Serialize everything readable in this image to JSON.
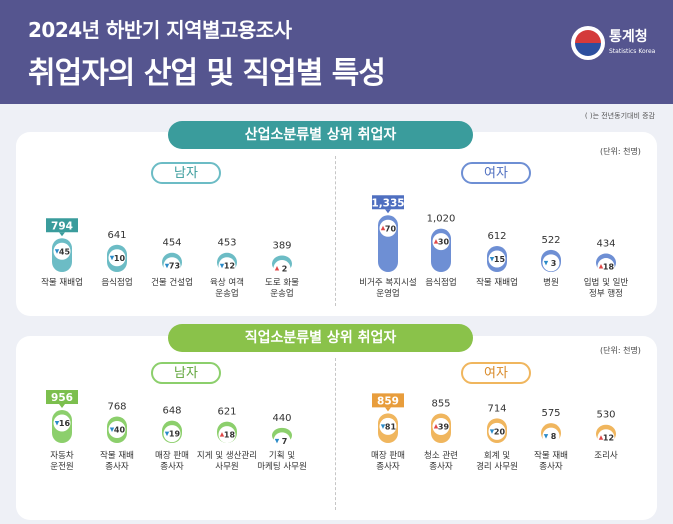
{
  "header": {
    "title_line1": "2024년 하반기 지역별고용조사",
    "title_line2": "취업자의 산업 및 직업별 특성",
    "logo_name": "통계청",
    "logo_sub": "Statistics Korea"
  },
  "note": "(  )는 전년동기대비 증감",
  "colors": {
    "teal": "#6cbcc5",
    "teal_dark": "#3a9c9c",
    "blue": "#6e8fd4",
    "blue_dark": "#4f6fc0",
    "green": "#8ccf6c",
    "green_dark": "#7cbf4e",
    "orange": "#f0b65e",
    "orange_dark": "#e89d3c",
    "increase": "#e04848",
    "decrease": "#2a8ac8"
  },
  "chart_data": [
    {
      "type": "bar",
      "title": "산업소분류별 상위 취업자",
      "unit": "(단위: 천명)",
      "groups": [
        {
          "name": "남자",
          "categories": [
            "작물 재배업",
            "음식점업",
            "건물 건설업",
            "육상 여객\n운송업",
            "도로 화물\n운송업"
          ],
          "values": [
            794,
            641,
            454,
            453,
            389
          ],
          "changes": [
            "45",
            "10",
            "73",
            "12",
            "2"
          ],
          "change_dir": [
            "down",
            "down",
            "down",
            "down",
            "up"
          ],
          "highlight": [
            true,
            false,
            false,
            false,
            false
          ]
        },
        {
          "name": "여자",
          "categories": [
            "비거주 복지시설\n운영업",
            "음식점업",
            "작물 재배업",
            "병원",
            "입법 및 일반\n정부 행정"
          ],
          "values": [
            1335,
            1020,
            612,
            522,
            434
          ],
          "changes": [
            "70",
            "30",
            "15",
            "3",
            "18"
          ],
          "change_dir": [
            "up",
            "up",
            "down",
            "down",
            "up"
          ],
          "highlight": [
            true,
            false,
            false,
            false,
            false
          ]
        }
      ]
    },
    {
      "type": "bar",
      "title": "직업소분류별 상위 취업자",
      "unit": "(단위: 천명)",
      "groups": [
        {
          "name": "남자",
          "categories": [
            "자동차\n운전원",
            "작물 재배\n종사자",
            "매장 판매\n종사자",
            "지게 및 생산관리\n사무원",
            "기획 및\n마케팅 사무원"
          ],
          "values": [
            956,
            768,
            648,
            621,
            440
          ],
          "changes": [
            "16",
            "40",
            "19",
            "18",
            "7"
          ],
          "change_dir": [
            "down",
            "down",
            "down",
            "up",
            "down"
          ],
          "highlight": [
            true,
            false,
            false,
            false,
            false
          ]
        },
        {
          "name": "여자",
          "categories": [
            "매장 판매\n종사자",
            "청소 관련\n종사자",
            "회계 및\n경리 사무원",
            "작물 재배\n종사자",
            "조리사"
          ],
          "values": [
            859,
            855,
            714,
            575,
            530
          ],
          "changes": [
            "81",
            "39",
            "20",
            "8",
            "12"
          ],
          "change_dir": [
            "down",
            "up",
            "down",
            "down",
            "up"
          ],
          "highlight": [
            true,
            false,
            false,
            false,
            false
          ]
        }
      ]
    }
  ]
}
